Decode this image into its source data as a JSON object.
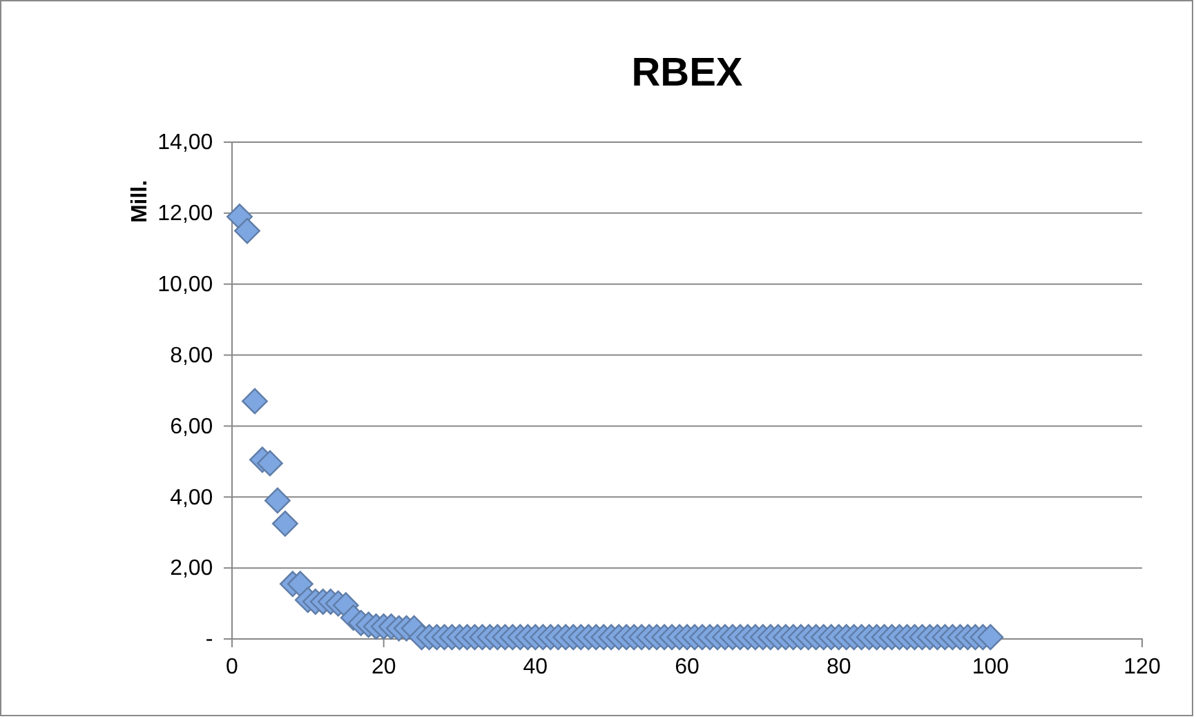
{
  "chart_data": {
    "type": "scatter",
    "title": "RBEX",
    "ylabel": "Mill.",
    "marker": "diamond",
    "grid": "y",
    "x": [
      1,
      2,
      3,
      4,
      5,
      6,
      7,
      8,
      9,
      10,
      11,
      12,
      13,
      14,
      15,
      16,
      17,
      18,
      19,
      20,
      21,
      22,
      23,
      24,
      25,
      26,
      27,
      28,
      29,
      30,
      31,
      32,
      33,
      34,
      35,
      36,
      37,
      38,
      39,
      40,
      41,
      42,
      43,
      44,
      45,
      46,
      47,
      48,
      49,
      50,
      51,
      52,
      53,
      54,
      55,
      56,
      57,
      58,
      59,
      60,
      61,
      62,
      63,
      64,
      65,
      66,
      67,
      68,
      69,
      70,
      71,
      72,
      73,
      74,
      75,
      76,
      77,
      78,
      79,
      80,
      81,
      82,
      83,
      84,
      85,
      86,
      87,
      88,
      89,
      90,
      91,
      92,
      93,
      94,
      95,
      96,
      97,
      98,
      99,
      100
    ],
    "series": [
      {
        "color": "#7ea6e0",
        "values": [
          11.9,
          11.5,
          6.7,
          5.05,
          4.95,
          3.9,
          3.25,
          1.55,
          1.55,
          1.1,
          1.05,
          1.05,
          1.05,
          1.0,
          0.95,
          0.6,
          0.45,
          0.4,
          0.35,
          0.35,
          0.35,
          0.3,
          0.3,
          0.3,
          0.05,
          0.05,
          0.05,
          0.05,
          0.05,
          0.05,
          0.05,
          0.05,
          0.05,
          0.05,
          0.05,
          0.05,
          0.05,
          0.05,
          0.05,
          0.05,
          0.05,
          0.05,
          0.05,
          0.05,
          0.05,
          0.05,
          0.05,
          0.05,
          0.05,
          0.05,
          0.05,
          0.05,
          0.05,
          0.05,
          0.05,
          0.05,
          0.05,
          0.05,
          0.05,
          0.05,
          0.05,
          0.05,
          0.05,
          0.05,
          0.05,
          0.05,
          0.05,
          0.05,
          0.05,
          0.05,
          0.05,
          0.05,
          0.05,
          0.05,
          0.05,
          0.05,
          0.05,
          0.05,
          0.05,
          0.05,
          0.05,
          0.05,
          0.05,
          0.05,
          0.05,
          0.05,
          0.05,
          0.05,
          0.05,
          0.05,
          0.05,
          0.05,
          0.05,
          0.05,
          0.05,
          0.05,
          0.05,
          0.05,
          0.05,
          0.05
        ]
      }
    ],
    "xlim": [
      0,
      120
    ],
    "xticks": [
      0,
      20,
      40,
      60,
      80,
      100,
      120
    ],
    "ylim": [
      0,
      14
    ],
    "yticks": [
      {
        "value": 0,
        "label": "-"
      },
      {
        "value": 2,
        "label": "2,00"
      },
      {
        "value": 4,
        "label": "4,00"
      },
      {
        "value": 6,
        "label": "6,00"
      },
      {
        "value": 8,
        "label": "8,00"
      },
      {
        "value": 10,
        "label": "10,00"
      },
      {
        "value": 12,
        "label": "12,00"
      },
      {
        "value": 14,
        "label": "14,00"
      }
    ]
  }
}
